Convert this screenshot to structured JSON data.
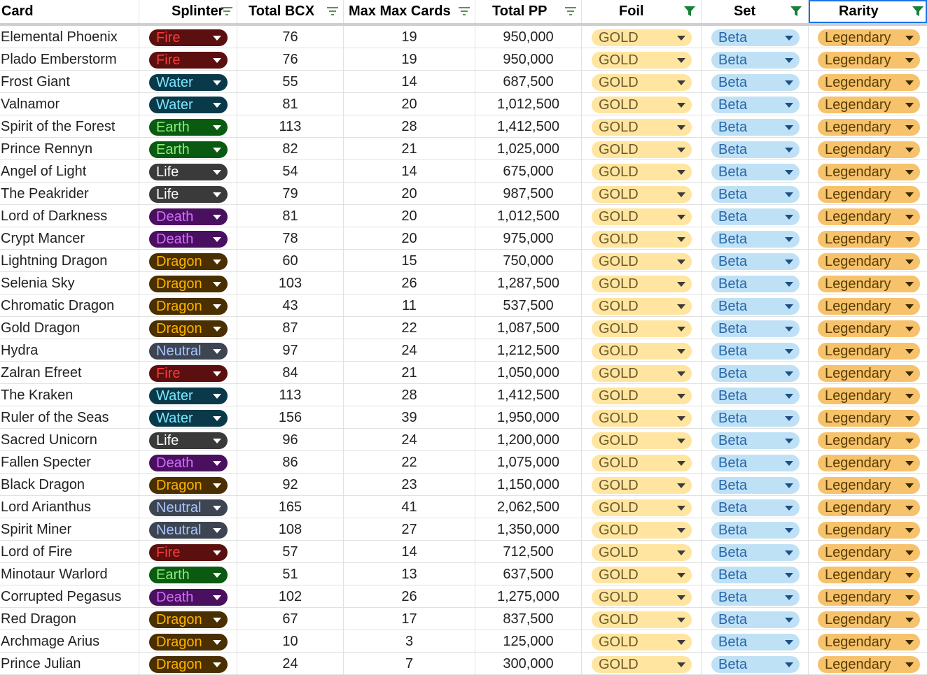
{
  "headers": {
    "card": "Card",
    "splinter": "Splinter",
    "total_bcx": "Total BCX",
    "max_max_cards": "Max Max Cards",
    "total_pp": "Total PP",
    "foil": "Foil",
    "set": "Set",
    "rarity": "Rarity"
  },
  "colors": {
    "filter_inactive": "#5f8e5a",
    "filter_active": "#188038",
    "selection_border": "#1a73e8",
    "chip_foil_bg": "#ffe5a0",
    "chip_set_bg": "#bfe1f6",
    "chip_rarity_bg": "#f6c26b",
    "splinter_styles": {
      "Fire": {
        "bg": "#5b0f0f",
        "fg": "#ff3b3b"
      },
      "Water": {
        "bg": "#0a3a4a",
        "fg": "#7fe6ff"
      },
      "Earth": {
        "bg": "#0b5a12",
        "fg": "#8cf07a"
      },
      "Life": {
        "bg": "#3a3a3a",
        "fg": "#ffffff"
      },
      "Death": {
        "bg": "#4a1060",
        "fg": "#d36bff"
      },
      "Dragon": {
        "bg": "#4a2f00",
        "fg": "#ffb300"
      },
      "Neutral": {
        "bg": "#3c4551",
        "fg": "#a9c3ff"
      }
    }
  },
  "icons": {
    "filter_inactive": "filter-lines-icon",
    "filter_active": "filter-funnel-icon",
    "dropdown": "chevron-down-icon"
  },
  "rows": [
    {
      "card": "Elemental Phoenix",
      "splinter": "Fire",
      "total_bcx": "76",
      "max_max_cards": "19",
      "total_pp": "950,000",
      "foil": "GOLD",
      "set": "Beta",
      "rarity": "Legendary"
    },
    {
      "card": "Plado Emberstorm",
      "splinter": "Fire",
      "total_bcx": "76",
      "max_max_cards": "19",
      "total_pp": "950,000",
      "foil": "GOLD",
      "set": "Beta",
      "rarity": "Legendary"
    },
    {
      "card": "Frost Giant",
      "splinter": "Water",
      "total_bcx": "55",
      "max_max_cards": "14",
      "total_pp": "687,500",
      "foil": "GOLD",
      "set": "Beta",
      "rarity": "Legendary"
    },
    {
      "card": "Valnamor",
      "splinter": "Water",
      "total_bcx": "81",
      "max_max_cards": "20",
      "total_pp": "1,012,500",
      "foil": "GOLD",
      "set": "Beta",
      "rarity": "Legendary"
    },
    {
      "card": "Spirit of the Forest",
      "splinter": "Earth",
      "total_bcx": "113",
      "max_max_cards": "28",
      "total_pp": "1,412,500",
      "foil": "GOLD",
      "set": "Beta",
      "rarity": "Legendary"
    },
    {
      "card": "Prince Rennyn",
      "splinter": "Earth",
      "total_bcx": "82",
      "max_max_cards": "21",
      "total_pp": "1,025,000",
      "foil": "GOLD",
      "set": "Beta",
      "rarity": "Legendary"
    },
    {
      "card": "Angel of Light",
      "splinter": "Life",
      "total_bcx": "54",
      "max_max_cards": "14",
      "total_pp": "675,000",
      "foil": "GOLD",
      "set": "Beta",
      "rarity": "Legendary"
    },
    {
      "card": "The Peakrider",
      "splinter": "Life",
      "total_bcx": "79",
      "max_max_cards": "20",
      "total_pp": "987,500",
      "foil": "GOLD",
      "set": "Beta",
      "rarity": "Legendary"
    },
    {
      "card": "Lord of Darkness",
      "splinter": "Death",
      "total_bcx": "81",
      "max_max_cards": "20",
      "total_pp": "1,012,500",
      "foil": "GOLD",
      "set": "Beta",
      "rarity": "Legendary"
    },
    {
      "card": "Crypt Mancer",
      "splinter": "Death",
      "total_bcx": "78",
      "max_max_cards": "20",
      "total_pp": "975,000",
      "foil": "GOLD",
      "set": "Beta",
      "rarity": "Legendary"
    },
    {
      "card": "Lightning Dragon",
      "splinter": "Dragon",
      "total_bcx": "60",
      "max_max_cards": "15",
      "total_pp": "750,000",
      "foil": "GOLD",
      "set": "Beta",
      "rarity": "Legendary"
    },
    {
      "card": "Selenia Sky",
      "splinter": "Dragon",
      "total_bcx": "103",
      "max_max_cards": "26",
      "total_pp": "1,287,500",
      "foil": "GOLD",
      "set": "Beta",
      "rarity": "Legendary"
    },
    {
      "card": "Chromatic Dragon",
      "splinter": "Dragon",
      "total_bcx": "43",
      "max_max_cards": "11",
      "total_pp": "537,500",
      "foil": "GOLD",
      "set": "Beta",
      "rarity": "Legendary"
    },
    {
      "card": "Gold Dragon",
      "splinter": "Dragon",
      "total_bcx": "87",
      "max_max_cards": "22",
      "total_pp": "1,087,500",
      "foil": "GOLD",
      "set": "Beta",
      "rarity": "Legendary"
    },
    {
      "card": "Hydra",
      "splinter": "Neutral",
      "total_bcx": "97",
      "max_max_cards": "24",
      "total_pp": "1,212,500",
      "foil": "GOLD",
      "set": "Beta",
      "rarity": "Legendary"
    },
    {
      "card": "Zalran Efreet",
      "splinter": "Fire",
      "total_bcx": "84",
      "max_max_cards": "21",
      "total_pp": "1,050,000",
      "foil": "GOLD",
      "set": "Beta",
      "rarity": "Legendary"
    },
    {
      "card": "The Kraken",
      "splinter": "Water",
      "total_bcx": "113",
      "max_max_cards": "28",
      "total_pp": "1,412,500",
      "foil": "GOLD",
      "set": "Beta",
      "rarity": "Legendary"
    },
    {
      "card": "Ruler of the Seas",
      "splinter": "Water",
      "total_bcx": "156",
      "max_max_cards": "39",
      "total_pp": "1,950,000",
      "foil": "GOLD",
      "set": "Beta",
      "rarity": "Legendary"
    },
    {
      "card": "Sacred Unicorn",
      "splinter": "Life",
      "total_bcx": "96",
      "max_max_cards": "24",
      "total_pp": "1,200,000",
      "foil": "GOLD",
      "set": "Beta",
      "rarity": "Legendary"
    },
    {
      "card": "Fallen Specter",
      "splinter": "Death",
      "total_bcx": "86",
      "max_max_cards": "22",
      "total_pp": "1,075,000",
      "foil": "GOLD",
      "set": "Beta",
      "rarity": "Legendary"
    },
    {
      "card": "Black Dragon",
      "splinter": "Dragon",
      "total_bcx": "92",
      "max_max_cards": "23",
      "total_pp": "1,150,000",
      "foil": "GOLD",
      "set": "Beta",
      "rarity": "Legendary"
    },
    {
      "card": "Lord Arianthus",
      "splinter": "Neutral",
      "total_bcx": "165",
      "max_max_cards": "41",
      "total_pp": "2,062,500",
      "foil": "GOLD",
      "set": "Beta",
      "rarity": "Legendary"
    },
    {
      "card": "Spirit Miner",
      "splinter": "Neutral",
      "total_bcx": "108",
      "max_max_cards": "27",
      "total_pp": "1,350,000",
      "foil": "GOLD",
      "set": "Beta",
      "rarity": "Legendary"
    },
    {
      "card": "Lord of Fire",
      "splinter": "Fire",
      "total_bcx": "57",
      "max_max_cards": "14",
      "total_pp": "712,500",
      "foil": "GOLD",
      "set": "Beta",
      "rarity": "Legendary"
    },
    {
      "card": "Minotaur Warlord",
      "splinter": "Earth",
      "total_bcx": "51",
      "max_max_cards": "13",
      "total_pp": "637,500",
      "foil": "GOLD",
      "set": "Beta",
      "rarity": "Legendary"
    },
    {
      "card": "Corrupted Pegasus",
      "splinter": "Death",
      "total_bcx": "102",
      "max_max_cards": "26",
      "total_pp": "1,275,000",
      "foil": "GOLD",
      "set": "Beta",
      "rarity": "Legendary"
    },
    {
      "card": "Red Dragon",
      "splinter": "Dragon",
      "total_bcx": "67",
      "max_max_cards": "17",
      "total_pp": "837,500",
      "foil": "GOLD",
      "set": "Beta",
      "rarity": "Legendary"
    },
    {
      "card": "Archmage Arius",
      "splinter": "Dragon",
      "total_bcx": "10",
      "max_max_cards": "3",
      "total_pp": "125,000",
      "foil": "GOLD",
      "set": "Beta",
      "rarity": "Legendary"
    },
    {
      "card": "Prince Julian",
      "splinter": "Dragon",
      "total_bcx": "24",
      "max_max_cards": "7",
      "total_pp": "300,000",
      "foil": "GOLD",
      "set": "Beta",
      "rarity": "Legendary"
    }
  ]
}
